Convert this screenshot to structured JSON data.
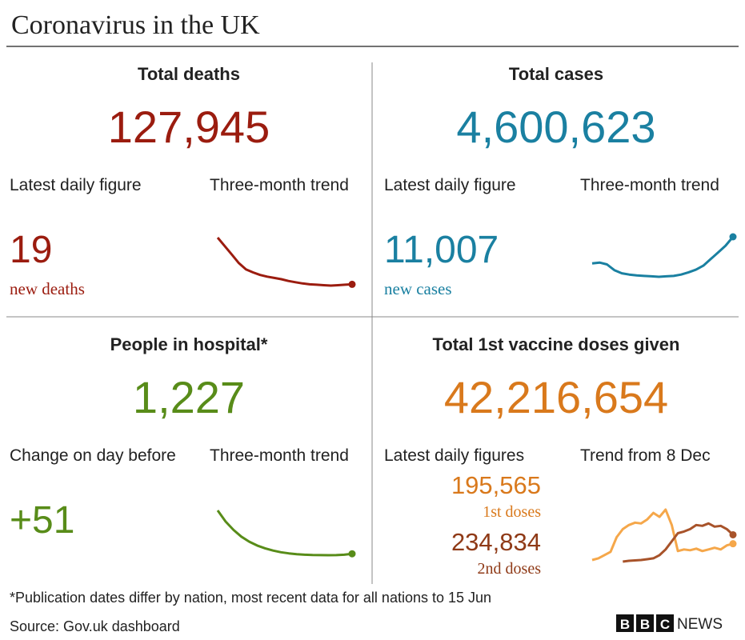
{
  "header": {
    "title": "Coronavirus in the UK"
  },
  "panels": [
    {
      "heading": "Total deaths",
      "total": "127,945",
      "label_left": "Latest daily figure",
      "label_right": "Three-month trend",
      "latest": "19",
      "latest_unit": "new deaths",
      "color": "#9b1c0f",
      "trend": [
        120,
        100,
        80,
        60,
        45,
        38,
        32,
        28,
        25,
        22,
        18,
        15,
        12,
        10,
        9,
        8,
        7,
        8,
        9,
        10
      ]
    },
    {
      "heading": "Total cases",
      "total": "4,600,623",
      "label_left": "Latest daily figure",
      "label_right": "Three-month trend",
      "latest": "11,007",
      "latest_unit": "new cases",
      "color": "#1a80a1",
      "trend": [
        5000,
        5200,
        4800,
        3500,
        2800,
        2500,
        2300,
        2200,
        2100,
        2000,
        2100,
        2200,
        2500,
        3000,
        3600,
        4500,
        6000,
        7500,
        9000,
        11007
      ]
    },
    {
      "heading": "People in hospital*",
      "total": "1,227",
      "label_left": "Change on day before",
      "label_right": "Three-month trend",
      "latest": "+51",
      "color": "#588c19",
      "trend": [
        9000,
        7000,
        5500,
        4300,
        3400,
        2700,
        2200,
        1800,
        1500,
        1300,
        1150,
        1050,
        1000,
        980,
        970,
        990,
        1050,
        1227
      ]
    },
    {
      "heading": "Total 1st vaccine doses given",
      "total": "42,216,654",
      "label_left": "Latest daily figures",
      "label_right": "Trend from 8 Dec",
      "color": "#d9791c",
      "latest": [
        {
          "value": "195,565",
          "label": "1st doses",
          "color": "#d9791c"
        },
        {
          "value": "234,834",
          "label": "2nd doses",
          "color": "#8f3a17"
        }
      ],
      "series": [
        {
          "color": "#f5a74a",
          "values": [
            20,
            40,
            80,
            120,
            300,
            400,
            450,
            480,
            470,
            520,
            600,
            550,
            640,
            450,
            130,
            150,
            140,
            160,
            130,
            150,
            170,
            150,
            200,
            220
          ]
        },
        {
          "color": "#a8532a",
          "values": [
            null,
            null,
            null,
            null,
            null,
            0,
            10,
            15,
            20,
            30,
            40,
            80,
            150,
            250,
            350,
            370,
            400,
            450,
            440,
            470,
            430,
            440,
            400,
            330
          ]
        }
      ]
    }
  ],
  "footnote": "*Publication dates differ by nation, most recent data for all nations to 15 Jun",
  "source": "Source: Gov.uk dashboard",
  "logo": {
    "letters": [
      "B",
      "B",
      "C"
    ],
    "news": "NEWS"
  }
}
